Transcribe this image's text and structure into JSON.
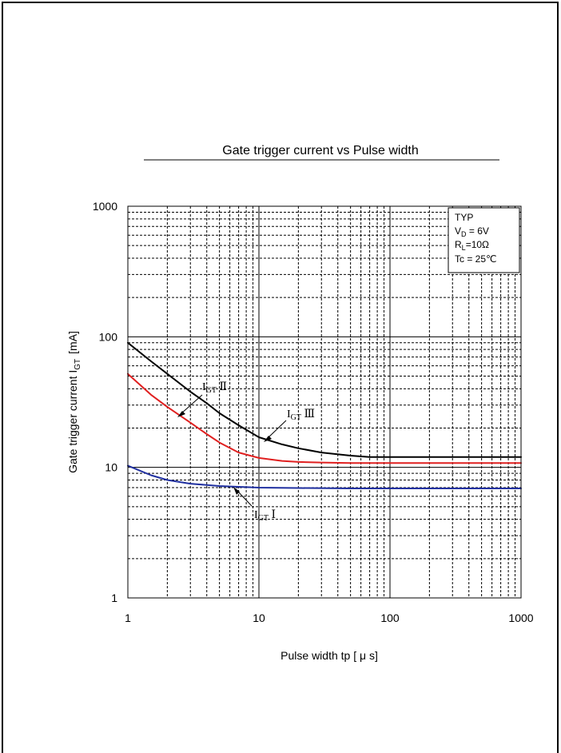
{
  "chart_data": {
    "type": "line",
    "title": "Gate trigger current  vs   Pulse width",
    "xlabel": "Pulse  width   tp  [ μ s]",
    "ylabel": "Gate  trigger  current I",
    "ylabel_sub": "GT",
    "ylabel_unit": "[mA]",
    "x_scale": "log",
    "y_scale": "log",
    "xlim": [
      1,
      1000
    ],
    "ylim": [
      1,
      1000
    ],
    "x_ticks": [
      1,
      10,
      100,
      1000
    ],
    "x_tick_labels": [
      "1",
      "10",
      "100",
      "1000"
    ],
    "y_ticks": [
      1,
      10,
      100,
      1000
    ],
    "y_tick_labels": [
      "1",
      "10",
      "100",
      "1000"
    ],
    "grid": true,
    "conditions": {
      "line1": "TYP",
      "line2_main": "V",
      "line2_sub": "D",
      "line2_rest": " = 6V",
      "line3_main": "R",
      "line3_sub": "L",
      "line3_rest": "=10Ω",
      "line4": "Tc = 25℃"
    },
    "series": [
      {
        "label_main": "I",
        "label_sub": "GT",
        "label_rest": " Ⅲ",
        "color": "#000000",
        "x": [
          1,
          1.5,
          2,
          3,
          4,
          5,
          7,
          10,
          15,
          20,
          30,
          50,
          70,
          100,
          200,
          500,
          1000
        ],
        "values": [
          90,
          65,
          52,
          38,
          31,
          26,
          21,
          17,
          15,
          14,
          13,
          12.3,
          12,
          12,
          12,
          12,
          12
        ]
      },
      {
        "label_main": "I",
        "label_sub": "GT",
        "label_rest": " Ⅱ",
        "color": "#e02020",
        "x": [
          1,
          1.5,
          2,
          3,
          4,
          5,
          7,
          10,
          15,
          20,
          30,
          50,
          100,
          200,
          500,
          1000
        ],
        "values": [
          52,
          36,
          29,
          22,
          18,
          15.5,
          13,
          11.8,
          11.2,
          11,
          10.9,
          10.8,
          10.8,
          10.8,
          10.8,
          10.8
        ]
      },
      {
        "label_main": "I",
        "label_sub": "GT",
        "label_rest": " Ⅰ",
        "color": "#2030a0",
        "x": [
          1,
          1.5,
          2,
          3,
          5,
          7,
          10,
          20,
          50,
          100,
          1000
        ],
        "values": [
          10.3,
          8.7,
          8.0,
          7.5,
          7.2,
          7.1,
          7.0,
          6.95,
          6.9,
          6.9,
          6.9
        ]
      }
    ]
  }
}
